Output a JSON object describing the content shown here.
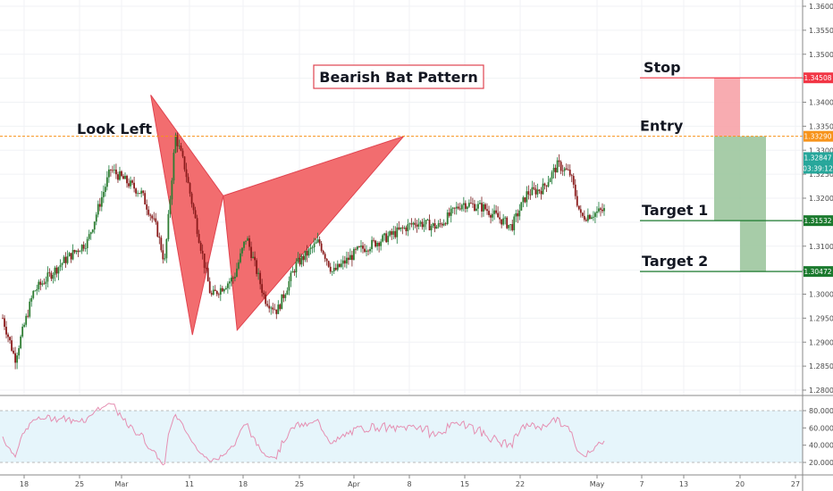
{
  "chart_data": {
    "type": "candlestick",
    "title": "Bearish Bat Pattern",
    "price_axis": {
      "ticks": [
        "1.36000",
        "1.35500",
        "1.35000",
        "1.34500",
        "1.34000",
        "1.33500",
        "1.33000",
        "1.32500",
        "1.32000",
        "1.31500",
        "1.31000",
        "1.30500",
        "1.30000",
        "1.29500",
        "1.29000",
        "1.28500",
        "1.28000"
      ],
      "range": [
        1.2775,
        1.3625
      ]
    },
    "rsi_axis": {
      "ticks": [
        "80.0000",
        "60.0000",
        "40.0000",
        "20.0000"
      ],
      "range": [
        10,
        95
      ],
      "band": [
        20,
        80
      ]
    },
    "x_axis": {
      "ticks": [
        "18",
        "25",
        "Mar",
        "11",
        "18",
        "25",
        "Apr",
        "8",
        "15",
        "22",
        "May",
        "7",
        "13",
        "20",
        "27"
      ]
    },
    "levels": [
      {
        "label": "Stop",
        "price": 1.34508,
        "tag": "1.34508",
        "color": "#f23645"
      },
      {
        "label": "Entry",
        "price": 1.3329,
        "tag": "1.33290",
        "color": "#f7931a"
      },
      {
        "label": "Target 1",
        "price": 1.31532,
        "tag": "1.31532",
        "color": "#1b7a2e"
      },
      {
        "label": "Target 2",
        "price": 1.30472,
        "tag": "1.30472",
        "color": "#1b7a2e"
      }
    ],
    "last_price": {
      "value": "1.32847",
      "countdown": "03:39:12"
    },
    "look_left_label": "Look Left",
    "look_left_price": 1.3329,
    "pattern_points": {
      "X": [
        1.3415,
        1.2915
      ],
      "A_label": "",
      "points": [
        {
          "bar": 96,
          "price": 1.3415
        },
        {
          "bar": 123,
          "price": 1.2915
        },
        {
          "bar": 143,
          "price": 1.3205
        },
        {
          "bar": 152,
          "price": 1.2925
        },
        {
          "bar": 260,
          "price": 1.3329
        }
      ]
    }
  }
}
